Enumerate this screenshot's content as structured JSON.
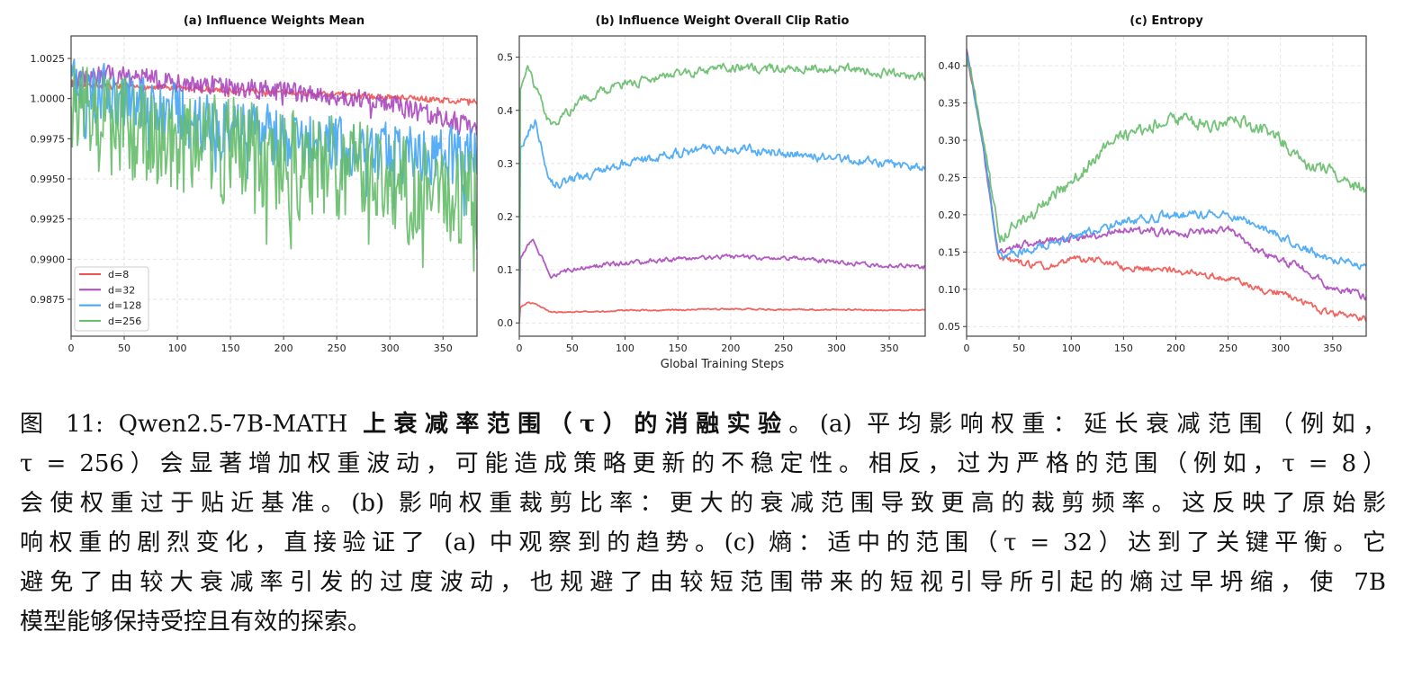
{
  "chart_data": [
    {
      "type": "line",
      "title": "(a) Influence Weights Mean",
      "xlabel": "",
      "ylabel": "",
      "xlim": [
        0,
        382
      ],
      "ylim": [
        0.9852,
        1.0039
      ],
      "xticks": [
        0,
        50,
        100,
        150,
        200,
        250,
        300,
        350
      ],
      "yticks": [
        0.9875,
        0.99,
        0.9925,
        0.995,
        0.9975,
        1.0,
        1.0025
      ],
      "ytick_labels": [
        "0.9875",
        "0.9900",
        "0.9925",
        "0.9950",
        "0.9975",
        "1.0000",
        "1.0025"
      ],
      "grid": true,
      "legend": "lower-left",
      "series": [
        {
          "name": "d=8",
          "color": "#ef5350",
          "noise": 0.00015,
          "x": [
            0,
            20,
            60,
            120,
            200,
            260,
            320,
            382
          ],
          "y": [
            1.001,
            1.0008,
            1.0007,
            1.0006,
            1.0004,
            1.0002,
            1.0,
            0.9998
          ]
        },
        {
          "name": "d=32",
          "color": "#ab47bc",
          "noise": 0.0005,
          "x": [
            0,
            30,
            60,
            100,
            150,
            200,
            250,
            300,
            340,
            382
          ],
          "y": [
            1.001,
            1.0015,
            1.0014,
            1.001,
            1.0008,
            1.0004,
            1.0002,
            0.9996,
            0.999,
            0.9982
          ]
        },
        {
          "name": "d=128",
          "color": "#42a5f5",
          "noise": 0.0016,
          "x": [
            0,
            30,
            60,
            100,
            150,
            200,
            250,
            300,
            350,
            382
          ],
          "y": [
            1.0008,
            1.0003,
            0.9998,
            0.999,
            0.998,
            0.9975,
            0.997,
            0.9965,
            0.9962,
            0.9965
          ]
        },
        {
          "name": "d=256",
          "color": "#66bb6a",
          "noise": 0.0028,
          "x": [
            0,
            30,
            60,
            100,
            150,
            200,
            250,
            300,
            350,
            382
          ],
          "y": [
            0.9995,
            0.9985,
            0.9978,
            0.9975,
            0.9968,
            0.996,
            0.9955,
            0.9945,
            0.994,
            0.9938
          ]
        }
      ]
    },
    {
      "type": "line",
      "title": "(b) Influence Weight Overall Clip Ratio",
      "xlabel": "Global Training Steps",
      "ylabel": "",
      "xlim": [
        0,
        384
      ],
      "ylim": [
        -0.025,
        0.54
      ],
      "xticks": [
        0,
        50,
        100,
        150,
        200,
        250,
        300,
        350
      ],
      "yticks": [
        0.0,
        0.1,
        0.2,
        0.3,
        0.4,
        0.5
      ],
      "ytick_labels": [
        "0.0",
        "0.1",
        "0.2",
        "0.3",
        "0.4",
        "0.5"
      ],
      "grid": true,
      "series": [
        {
          "name": "d=8",
          "color": "#ef5350",
          "noise": 0.002,
          "x": [
            0,
            1,
            8,
            15,
            30,
            60,
            100,
            200,
            300,
            384
          ],
          "y": [
            0.0,
            0.03,
            0.04,
            0.035,
            0.02,
            0.021,
            0.023,
            0.026,
            0.025,
            0.024
          ]
        },
        {
          "name": "d=32",
          "color": "#ab47bc",
          "noise": 0.006,
          "x": [
            0,
            1,
            12,
            30,
            50,
            80,
            150,
            200,
            270,
            330,
            384
          ],
          "y": [
            0.0,
            0.12,
            0.16,
            0.09,
            0.1,
            0.11,
            0.12,
            0.125,
            0.12,
            0.11,
            0.105
          ]
        },
        {
          "name": "d=128",
          "color": "#42a5f5",
          "noise": 0.012,
          "x": [
            0,
            1,
            15,
            30,
            50,
            100,
            150,
            200,
            250,
            300,
            350,
            384
          ],
          "y": [
            0.0,
            0.33,
            0.38,
            0.26,
            0.27,
            0.3,
            0.32,
            0.33,
            0.32,
            0.31,
            0.3,
            0.29
          ]
        },
        {
          "name": "d=256",
          "color": "#66bb6a",
          "noise": 0.012,
          "x": [
            0,
            1,
            8,
            30,
            60,
            100,
            150,
            200,
            250,
            300,
            350,
            384
          ],
          "y": [
            0.0,
            0.44,
            0.48,
            0.37,
            0.42,
            0.45,
            0.47,
            0.48,
            0.48,
            0.48,
            0.47,
            0.46
          ]
        }
      ]
    },
    {
      "type": "line",
      "title": "(c) Entropy",
      "xlabel": "",
      "ylabel": "",
      "xlim": [
        0,
        382
      ],
      "ylim": [
        0.037,
        0.44
      ],
      "xticks": [
        0,
        50,
        100,
        150,
        200,
        250,
        300,
        350
      ],
      "yticks": [
        0.05,
        0.1,
        0.15,
        0.2,
        0.25,
        0.3,
        0.35,
        0.4
      ],
      "ytick_labels": [
        "0.05",
        "0.10",
        "0.15",
        "0.20",
        "0.25",
        "0.30",
        "0.35",
        "0.40"
      ],
      "grid": true,
      "series": [
        {
          "name": "d=8",
          "color": "#ef5350",
          "noise": 0.006,
          "x": [
            0,
            15,
            30,
            50,
            75,
            100,
            125,
            150,
            200,
            250,
            280,
            300,
            340,
            382
          ],
          "y": [
            0.42,
            0.3,
            0.145,
            0.135,
            0.13,
            0.14,
            0.14,
            0.13,
            0.125,
            0.115,
            0.1,
            0.095,
            0.07,
            0.06
          ]
        },
        {
          "name": "d=32",
          "color": "#ab47bc",
          "noise": 0.007,
          "x": [
            0,
            15,
            30,
            40,
            75,
            110,
            150,
            200,
            250,
            280,
            320,
            350,
            382
          ],
          "y": [
            0.42,
            0.3,
            0.15,
            0.155,
            0.165,
            0.17,
            0.18,
            0.175,
            0.18,
            0.15,
            0.13,
            0.1,
            0.09
          ]
        },
        {
          "name": "d=128",
          "color": "#42a5f5",
          "noise": 0.008,
          "x": [
            0,
            15,
            30,
            50,
            100,
            150,
            200,
            250,
            290,
            320,
            350,
            382
          ],
          "y": [
            0.42,
            0.3,
            0.145,
            0.15,
            0.17,
            0.19,
            0.2,
            0.2,
            0.18,
            0.155,
            0.14,
            0.13
          ]
        },
        {
          "name": "d=256",
          "color": "#66bb6a",
          "noise": 0.012,
          "x": [
            0,
            15,
            32,
            50,
            80,
            100,
            125,
            150,
            200,
            230,
            260,
            300,
            330,
            350,
            382
          ],
          "y": [
            0.42,
            0.31,
            0.165,
            0.19,
            0.22,
            0.245,
            0.28,
            0.305,
            0.33,
            0.32,
            0.33,
            0.3,
            0.26,
            0.26,
            0.23
          ]
        }
      ]
    }
  ],
  "caption": {
    "lines": [
      [
        {
          "t": "图 11: Qwen2.5-7B-MATH "
        },
        {
          "t": "上衰减率范围（τ）的消融实验",
          "b": true
        },
        {
          "t": "。(a) 平均影响权重：延长衰减范围（例如，"
        }
      ],
      [
        {
          "t": "τ = 256）会显著增加权重波动，可能造成策略更新的不稳定性。相反，过为严格的范围（例如，τ = 8）"
        }
      ],
      [
        {
          "t": "会使权重过于贴近基准。(b) 影响权重裁剪比率：更大的衰减范围导致更高的裁剪频率。这反映了原始影"
        }
      ],
      [
        {
          "t": "响权重的剧烈变化，直接验证了 (a) 中观察到的趋势。(c) 熵：适中的范围（τ = 32）达到了关键平衡。它"
        }
      ],
      [
        {
          "t": "避免了由较大衰减率引发的过度波动，也规避了由较短范围带来的短视引导所引起的熵过早坍缩，使 7B"
        }
      ],
      [
        {
          "t": "模型能够保持受控且有效的探索。"
        }
      ]
    ]
  }
}
